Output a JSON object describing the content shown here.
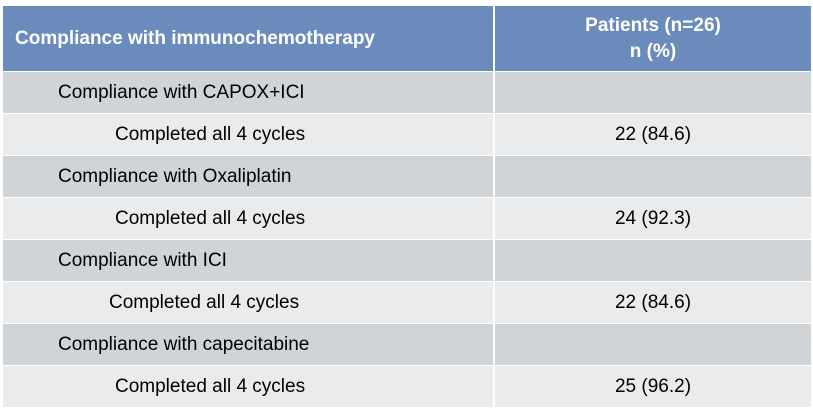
{
  "table": {
    "header": {
      "col1": "Compliance with immunochemotherapy",
      "col2_line1": "Patients (n=26)",
      "col2_line2": "n (%)"
    },
    "rows": [
      {
        "label": "Compliance with CAPOX+ICI",
        "value": ""
      },
      {
        "label": "Completed all 4 cycles",
        "value": "22 (84.6)"
      },
      {
        "label": "Compliance with Oxaliplatin",
        "value": ""
      },
      {
        "label": "Completed all 4 cycles",
        "value": "24 (92.3)"
      },
      {
        "label": "Compliance with ICI",
        "value": ""
      },
      {
        "label": "Completed all 4 cycles",
        "value": "22 (84.6)"
      },
      {
        "label": "Compliance with capecitabine",
        "value": ""
      },
      {
        "label": "Completed all 4 cycles",
        "value": "25 (96.2)"
      }
    ]
  },
  "colors": {
    "header_bg": "#6b8bbd",
    "section_bg": "#d0d4d7",
    "detail_bg": "#e9ebec"
  }
}
